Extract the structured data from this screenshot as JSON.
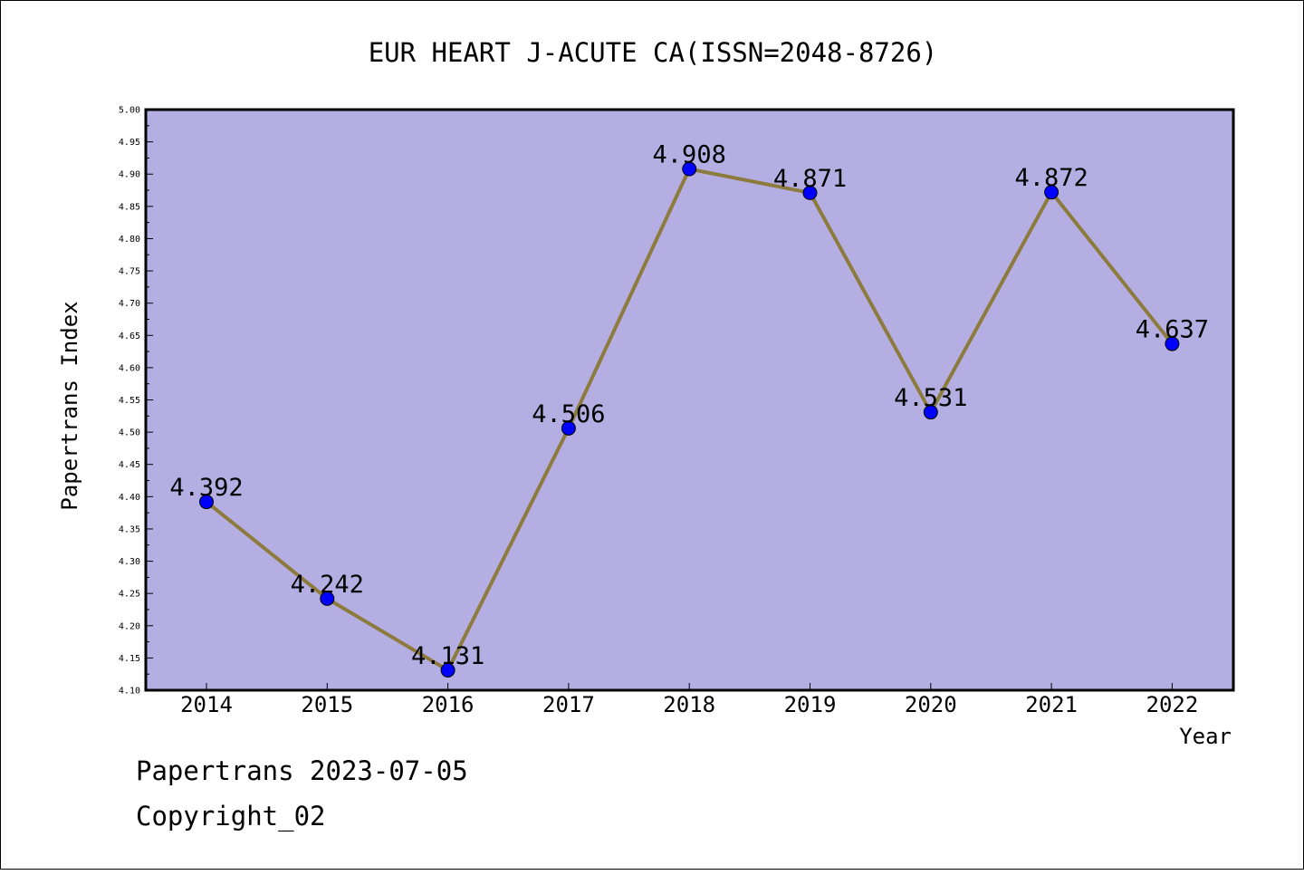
{
  "chart_data": {
    "type": "line",
    "title": "EUR HEART J-ACUTE CA(ISSN=2048-8726)",
    "xlabel": "Year",
    "ylabel": "Papertrans Index",
    "categories": [
      "2014",
      "2015",
      "2016",
      "2017",
      "2018",
      "2019",
      "2020",
      "2021",
      "2022"
    ],
    "values": [
      4.392,
      4.242,
      4.131,
      4.506,
      4.908,
      4.871,
      4.531,
      4.872,
      4.637
    ],
    "data_labels": [
      "4.392",
      "4.242",
      "4.131",
      "4.506",
      "4.908",
      "4.871",
      "4.531",
      "4.872",
      "4.637"
    ],
    "ylim": [
      4.1,
      5.0
    ],
    "yticks": [
      "4.10",
      "4.15",
      "4.20",
      "4.25",
      "4.30",
      "4.35",
      "4.40",
      "4.45",
      "4.50",
      "4.55",
      "4.60",
      "4.65",
      "4.70",
      "4.75",
      "4.80",
      "4.85",
      "4.90",
      "4.95",
      "5.00"
    ],
    "grid": false,
    "colors": {
      "plot_background": "#b5aee3",
      "line": "#8c7b3c",
      "marker": "#0000ff"
    }
  },
  "footer": {
    "line1": "Papertrans 2023-07-05",
    "line2": "Copyright_02"
  }
}
